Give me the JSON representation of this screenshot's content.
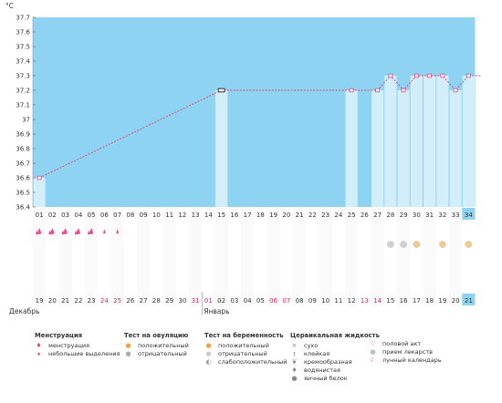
{
  "chart_data": {
    "type": "line",
    "unit_label": "°C",
    "ylim": [
      36.4,
      37.7
    ],
    "y_ticks": [
      "36.4",
      "36.5",
      "36.6",
      "36.7",
      "36.8",
      "36.9",
      "37",
      "37.1",
      "37.2",
      "37.3",
      "37.4",
      "37.5",
      "37.6",
      "37.7"
    ],
    "cycle_days": [
      "01",
      "02",
      "03",
      "04",
      "05",
      "06",
      "07",
      "08",
      "09",
      "10",
      "11",
      "12",
      "13",
      "14",
      "15",
      "16",
      "17",
      "18",
      "19",
      "20",
      "21",
      "22",
      "23",
      "24",
      "25",
      "26",
      "27",
      "28",
      "29",
      "30",
      "31",
      "32",
      "33",
      "34"
    ],
    "dates": [
      "19",
      "20",
      "21",
      "22",
      "23",
      "24",
      "25",
      "26",
      "27",
      "28",
      "29",
      "30",
      "31",
      "01",
      "02",
      "03",
      "04",
      "05",
      "06",
      "07",
      "08",
      "09",
      "10",
      "11",
      "12",
      "13",
      "14",
      "15",
      "16",
      "17",
      "18",
      "19",
      "20",
      "21"
    ],
    "red_date_indices": [
      5,
      6,
      12,
      13,
      18,
      19,
      25,
      26
    ],
    "month_labels": [
      {
        "index": 0,
        "label": "Декабрь"
      },
      {
        "index": 13,
        "label": "Январь"
      }
    ],
    "highlight_day_index": 33,
    "series": [
      {
        "values": [
          {
            "day": 1,
            "temp": 36.6
          },
          {
            "day": 15,
            "temp": 37.2
          },
          {
            "day": 25,
            "temp": 37.2
          },
          {
            "day": 27,
            "temp": 37.2
          },
          {
            "day": 28,
            "temp": 37.3
          },
          {
            "day": 29,
            "temp": 37.2
          },
          {
            "day": 30,
            "temp": 37.3
          },
          {
            "day": 31,
            "temp": 37.3
          },
          {
            "day": 32,
            "temp": 37.3
          },
          {
            "day": 33,
            "temp": 37.2
          },
          {
            "day": 34,
            "temp": 37.3
          },
          {
            "day": 35,
            "temp": 37.3
          }
        ]
      }
    ],
    "menstruation_days": [
      1,
      2,
      3,
      4,
      5
    ],
    "spotting_days": [
      6,
      7
    ],
    "ovulation_marks": [
      {
        "day": 28,
        "kind": "negative"
      },
      {
        "day": 29,
        "kind": "negative"
      },
      {
        "day": 30,
        "kind": "positive"
      },
      {
        "day": 32,
        "kind": "positive"
      },
      {
        "day": 34,
        "kind": "positive"
      }
    ]
  },
  "colors": {
    "chart_bg": "#8fd3f2",
    "bar_fill": "#d2eefb",
    "line": "#e0457b",
    "today": "#8fd3f2",
    "red_date": "#e0245e",
    "drop": "#e8508a"
  },
  "legend": {
    "menstruation": {
      "title": "Менструация",
      "items": [
        {
          "icon": "drops-icon",
          "label": "менструация"
        },
        {
          "icon": "small-drop-icon",
          "label": "небольшие выделения"
        }
      ]
    },
    "ovulation": {
      "title": "Тест на овуляцию",
      "items": [
        {
          "icon": "positive-test-icon",
          "label": "положительный"
        },
        {
          "icon": "negative-test-icon",
          "label": "отрицательный"
        }
      ]
    },
    "pregnancy": {
      "title": "Тест на беременность",
      "items": [
        {
          "icon": "preg-positive-icon",
          "label": "положительный"
        },
        {
          "icon": "preg-negative-icon",
          "label": "отрицательный"
        },
        {
          "icon": "preg-weak-icon",
          "label": "слабоположительный"
        }
      ]
    },
    "cervical": {
      "title": "Цервикальная жидкость",
      "items": [
        {
          "icon": "dry-icon",
          "label": "сухо"
        },
        {
          "icon": "sticky-icon",
          "label": "клейкая"
        },
        {
          "icon": "creamy-icon",
          "label": "кремообразная"
        },
        {
          "icon": "watery-icon",
          "label": "водянистая"
        },
        {
          "icon": "eggwhite-icon",
          "label": "яичный белок"
        }
      ]
    },
    "other": {
      "items": [
        {
          "icon": "heart-icon",
          "label": "половой акт"
        },
        {
          "icon": "pill-icon",
          "label": "прием лекарств"
        },
        {
          "icon": "moon-icon",
          "label": "лунный календарь"
        }
      ]
    }
  }
}
